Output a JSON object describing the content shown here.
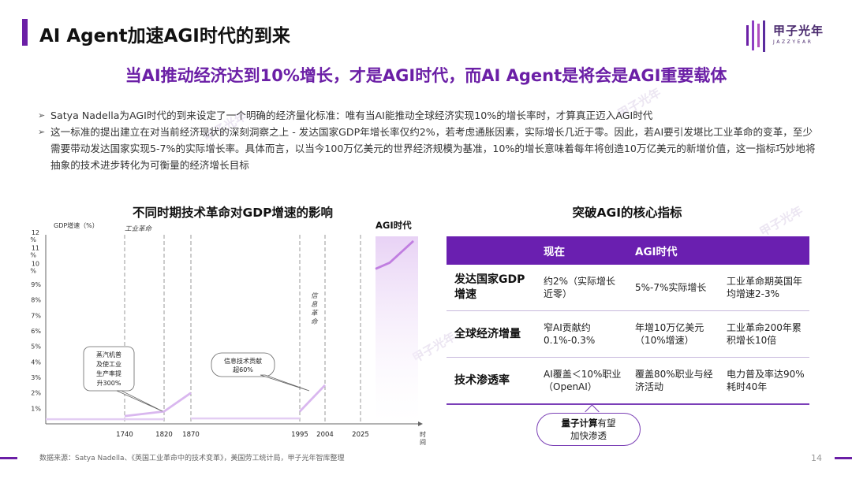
{
  "header": {
    "title": "AI Agent加速AGI时代的到来",
    "headline": "当AI推动经济达到10%增长，才是AGI时代，而AI Agent是将会是AGI重要载体",
    "logo_cn": "甲子光年",
    "logo_en": "JAZZYEAR"
  },
  "bullets": [
    "Satya Nadella为AGI时代的到来设定了一个明确的经济量化标准：唯有当AI能推动全球经济实现10%的增长率时，才算真正迈入AGI时代",
    "这一标准的提出建立在对当前经济现状的深刻洞察之上 - 发达国家GDP年增长率仅约2%，若考虑通胀因素，实际增长几近于零。因此，若AI要引发堪比工业革命的变革，至少需要带动发达国家实现5-7%的实际增长率。具体而言，以当今100万亿美元的世界经济规模为基准，10%的增长意味着每年将创造10万亿美元的新增价值，这一指标巧妙地将抽象的技术进步转化为可衡量的经济增长目标"
  ],
  "chart_section_title": "不同时期技术革命对GDP增速的影响",
  "chart_data": {
    "type": "line",
    "title": "不同时期技术革命对GDP增速的影响",
    "ylabel": "GDP增速（%）",
    "xlabel": "时间",
    "ylim": [
      0,
      12
    ],
    "y_ticks": [
      "1%",
      "2%",
      "3%",
      "4%",
      "5%",
      "6%",
      "7%",
      "8%",
      "9%",
      "10%",
      "11%",
      "12%"
    ],
    "x_ticks": [
      "1740",
      "1820",
      "1870",
      "1995",
      "2004",
      "2025"
    ],
    "periods": [
      {
        "label": "工业革命",
        "from": "1740",
        "to": "1870"
      },
      {
        "label": "信息革命",
        "from": "1995",
        "to": "2004"
      },
      {
        "label": "AGI时代",
        "from": "2025",
        "to": ""
      }
    ],
    "series": [
      {
        "segment": "industrial",
        "x": [
          "1740",
          "1820",
          "1870"
        ],
        "y": [
          0.5,
          0.8,
          2.0
        ]
      },
      {
        "segment": "information",
        "x": [
          "1995",
          "2004"
        ],
        "y": [
          0.8,
          2.5
        ]
      },
      {
        "segment": "agi",
        "x": [
          "2025",
          "after"
        ],
        "y": [
          10.0,
          11.8
        ]
      }
    ],
    "annotations": [
      {
        "text": "蒸汽机普及使工业生产率提升300%",
        "lines": [
          "蒸汽机普",
          "及使工业",
          "生产率提",
          "升300%"
        ]
      },
      {
        "text": "信息技术贡献超60%",
        "lines": [
          "信息技术贡献",
          "超60%"
        ]
      }
    ],
    "grid": false,
    "accent_color": "#c07ee0"
  },
  "table_section_title": "突破AGI的核心指标",
  "table": {
    "headers": [
      "",
      "现在",
      "AGI时代",
      ""
    ],
    "rows": [
      {
        "label": "发达国家GDP增速",
        "now": "约2%（实际增长近零）",
        "agi": "5%-7%实际增长",
        "ref": "工业革命期英国年均增速2-3%"
      },
      {
        "label": "全球经济增量",
        "now": "窄AI贡献约0.1%-0.3%",
        "agi": "年增10万亿美元（10%增速）",
        "ref": "工业革命200年累积增长10倍"
      },
      {
        "label": "技术渗透率",
        "now": "AI覆盖＜10%职业（OpenAI）",
        "agi": "覆盖80%职业与经济活动",
        "ref": "电力普及率达90%耗时40年"
      }
    ]
  },
  "callout": {
    "bold": "量子计算",
    "rest": "有望",
    "line2": "加快渗透"
  },
  "footer": {
    "source": "数据来源：Satya Nadella、《英国工业革命中的技术变革》，美国劳工统计局，甲子光年智库整理",
    "page": "14"
  },
  "colors": {
    "brand": "#6b1fa6",
    "table_header": "#6a1fb0"
  }
}
